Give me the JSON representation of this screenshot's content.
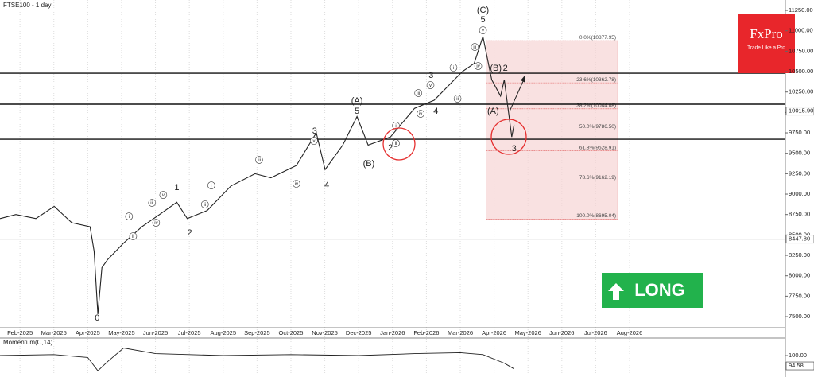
{
  "chart_data": {
    "type": "line",
    "title": "FTSE100 - 1 day",
    "x": [
      0.41,
      0.88,
      1.47,
      2.01,
      2.53,
      3.07,
      3.19,
      3.3,
      3.42,
      3.59,
      4.06,
      4.6,
      5.12,
      5.63,
      5.94,
      6.53,
      7.23,
      7.94,
      8.41,
      9.16,
      9.75,
      10.01,
      10.53,
      10.95,
      11.28,
      11.94,
      12.65,
      13.23,
      14.06,
      14.41,
      14.67,
      14.93,
      15.19,
      15.3,
      15.52,
      15.59
    ],
    "values": [
      8700,
      8750,
      8700,
      8850,
      8650,
      8600,
      8300,
      7530,
      8100,
      8200,
      8400,
      8600,
      8750,
      8900,
      8700,
      8800,
      9100,
      9250,
      9200,
      9350,
      9750,
      9300,
      9600,
      9950,
      9600,
      9700,
      10050,
      10150,
      10500,
      10600,
      10930,
      10400,
      10200,
      10400,
      9700,
      9850
    ],
    "color": "#222222",
    "xlim": [
      0.41,
      23.6
    ],
    "xticks": [
      {
        "value": 1,
        "label": "Feb-2025"
      },
      {
        "value": 2,
        "label": "Mar-2025"
      },
      {
        "value": 3,
        "label": "Apr-2025"
      },
      {
        "value": 4,
        "label": "May-2025"
      },
      {
        "value": 5,
        "label": "Jun-2025"
      },
      {
        "value": 6,
        "label": "Jul-2025"
      },
      {
        "value": 7,
        "label": "Aug-2025"
      },
      {
        "value": 8,
        "label": "Sep-2025"
      },
      {
        "value": 9,
        "label": "Oct-2025"
      },
      {
        "value": 10,
        "label": "Nov-2025"
      },
      {
        "value": 11,
        "label": "Dec-2025"
      },
      {
        "value": 12,
        "label": "Jan-2026"
      },
      {
        "value": 13,
        "label": "Feb-2026"
      },
      {
        "value": 14,
        "label": "Mar-2026"
      },
      {
        "value": 15,
        "label": "Apr-2026"
      },
      {
        "value": 16,
        "label": "May-2026"
      },
      {
        "value": 17,
        "label": "Jun-2026"
      },
      {
        "value": 18,
        "label": "Jul-2026"
      },
      {
        "value": 19,
        "label": "Aug-2026"
      }
    ],
    "ylim": [
      7364,
      11377
    ],
    "yticks": [
      {
        "value": 7500,
        "label": "7500.00"
      },
      {
        "value": 7750,
        "label": "7750.00"
      },
      {
        "value": 8000,
        "label": "8000.00"
      },
      {
        "value": 8250,
        "label": "8250.00"
      },
      {
        "value": 8500,
        "label": "8500.00"
      },
      {
        "value": 8750,
        "label": "8750.00"
      },
      {
        "value": 9000,
        "label": "9000.00"
      },
      {
        "value": 9250,
        "label": "9250.00"
      },
      {
        "value": 9500,
        "label": "9500.00"
      },
      {
        "value": 9750,
        "label": "9750.00"
      },
      {
        "value": 10000,
        "label": "10000.00"
      },
      {
        "value": 10250,
        "label": "10250.00"
      },
      {
        "value": 10500,
        "label": "10500.00"
      },
      {
        "value": 10750,
        "label": "10750.00"
      },
      {
        "value": 11000,
        "label": "11000.00"
      },
      {
        "value": 11250,
        "label": "11250.00"
      }
    ],
    "grid": true,
    "price_markers": [
      {
        "value": 10015.9,
        "label": "10015.90"
      },
      {
        "value": 8447.8,
        "label": "8447.80"
      }
    ],
    "levels": [
      10480,
      10101,
      9672
    ],
    "fib_range": [
      14.76,
      18.65
    ],
    "fib_levels": [
      {
        "value": 10877.95,
        "label": "0.0%(10877.95)"
      },
      {
        "value": 10362.78,
        "label": "23.6%(10362.78)"
      },
      {
        "value": 10044.08,
        "label": "38.2%(10044.08)"
      },
      {
        "value": 9786.5,
        "label": "50.0%(9786.50)"
      },
      {
        "value": 9528.91,
        "label": "61.8%(9528.91)"
      },
      {
        "value": 9162.19,
        "label": "78.6%(9162.19)"
      },
      {
        "value": 8695.04,
        "label": "100.0%(8695.04)"
      }
    ],
    "annotations": [
      {
        "text": "0",
        "x": 3.28,
        "y": 7481
      },
      {
        "text": "1",
        "x": 5.63,
        "y": 9078
      },
      {
        "text": "2",
        "x": 6.01,
        "y": 8523
      },
      {
        "text": "3",
        "x": 9.7,
        "y": 9770
      },
      {
        "text": "4",
        "x": 10.06,
        "y": 9107
      },
      {
        "text": "5",
        "x": 10.95,
        "y": 10013
      },
      {
        "text": "(A)",
        "x": 10.95,
        "y": 10140
      },
      {
        "text": "(B)",
        "x": 11.3,
        "y": 9370
      },
      {
        "text": "2",
        "x": 11.94,
        "y": 9565
      },
      {
        "text": "3",
        "x": 13.14,
        "y": 10451
      },
      {
        "text": "4",
        "x": 13.28,
        "y": 10013
      },
      {
        "text": "5",
        "x": 14.67,
        "y": 11133
      },
      {
        "text": "(C)",
        "x": 14.67,
        "y": 11250
      },
      {
        "text": "(B)",
        "x": 15.05,
        "y": 10539
      },
      {
        "text": "2",
        "x": 15.33,
        "y": 10539
      },
      {
        "text": "(A)",
        "x": 14.97,
        "y": 10013
      },
      {
        "text": "3",
        "x": 15.59,
        "y": 9555
      },
      {
        "text": "i",
        "x": 4.22,
        "y": 8727,
        "circled": true
      },
      {
        "text": "ii",
        "x": 4.34,
        "y": 8484,
        "circled": true
      },
      {
        "text": "iii",
        "x": 4.9,
        "y": 8893,
        "circled": true
      },
      {
        "text": "iv",
        "x": 5.02,
        "y": 8649,
        "circled": true
      },
      {
        "text": "v",
        "x": 5.23,
        "y": 8990,
        "circled": true
      },
      {
        "text": "i",
        "x": 6.65,
        "y": 9107,
        "circled": true
      },
      {
        "text": "ii",
        "x": 6.46,
        "y": 8874,
        "circled": true
      },
      {
        "text": "iii",
        "x": 8.06,
        "y": 9419,
        "circled": true
      },
      {
        "text": "iv",
        "x": 9.16,
        "y": 9127,
        "circled": true
      },
      {
        "text": "v",
        "x": 9.68,
        "y": 9653,
        "circled": true
      },
      {
        "text": "i",
        "x": 12.1,
        "y": 9838,
        "circled": true
      },
      {
        "text": "ii",
        "x": 12.1,
        "y": 9623,
        "circled": true
      },
      {
        "text": "iii",
        "x": 12.76,
        "y": 10237,
        "circled": true
      },
      {
        "text": "iv",
        "x": 12.83,
        "y": 9984,
        "circled": true
      },
      {
        "text": "v",
        "x": 13.12,
        "y": 10334,
        "circled": true
      },
      {
        "text": "i",
        "x": 13.8,
        "y": 10549,
        "circled": true
      },
      {
        "text": "ii",
        "x": 13.92,
        "y": 10169,
        "circled": true
      },
      {
        "text": "iii",
        "x": 14.43,
        "y": 10802,
        "circled": true
      },
      {
        "text": "iv",
        "x": 14.53,
        "y": 10568,
        "circled": true
      },
      {
        "text": "v",
        "x": 14.67,
        "y": 11006,
        "circled": true
      }
    ],
    "momentum": {
      "title": "Momentum(C,14)",
      "x": [
        0.41,
        2,
        3,
        3.3,
        3.6,
        4.06,
        5,
        7,
        9,
        11,
        12.65,
        14,
        14.67,
        15.3,
        15.59
      ],
      "values": [
        100,
        100.5,
        99,
        92,
        97,
        104,
        101,
        100,
        100.5,
        100,
        101,
        101.5,
        100.5,
        96,
        93
      ],
      "ylim": [
        88.75,
        109.2
      ],
      "yticks": [
        {
          "value": 100,
          "label": "100.00"
        }
      ],
      "marker": {
        "value": 94.58,
        "label": "94.58"
      }
    },
    "logo": {
      "name": "FxPro",
      "tagline": "Trade Like a Pro"
    },
    "signal": "LONG"
  }
}
